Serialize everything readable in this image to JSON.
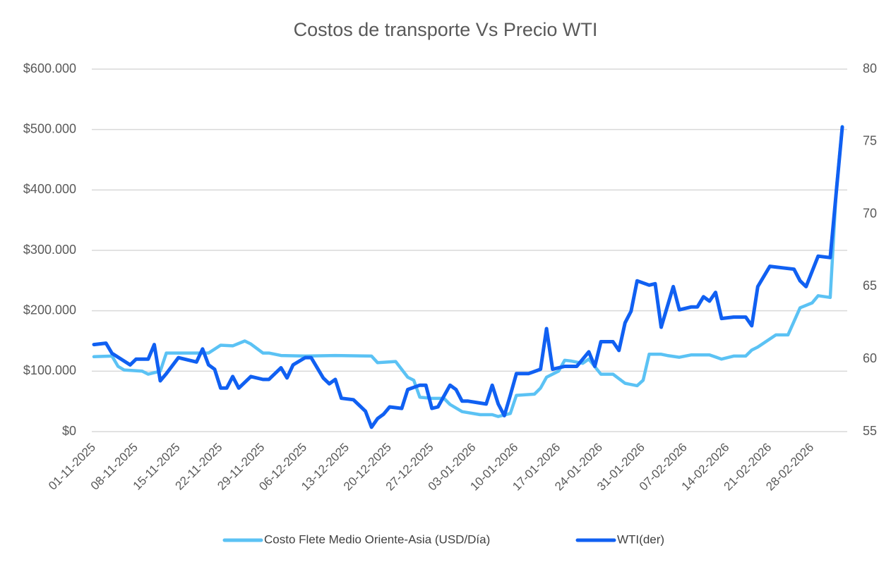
{
  "chart_data": {
    "type": "line",
    "title": "Costos de transporte Vs Precio WTI",
    "xlim": [
      "01-11-2025",
      "05-03-2026"
    ],
    "xticks": [
      "01-11-2025",
      "08-11-2025",
      "15-11-2025",
      "22-11-2025",
      "29-11-2025",
      "06-12-2025",
      "13-12-2025",
      "20-12-2025",
      "27-12-2025",
      "03-01-2026",
      "10-01-2026",
      "17-01-2026",
      "24-01-2026",
      "31-01-2026",
      "07-02-2026",
      "14-02-2026",
      "21-02-2026",
      "28-02-2026"
    ],
    "ylim": [
      0,
      600000
    ],
    "yticks": [
      {
        "value": 0,
        "label": "$0"
      },
      {
        "value": 100000,
        "label": "$100.000"
      },
      {
        "value": 200000,
        "label": "$200.000"
      },
      {
        "value": 300000,
        "label": "$300.000"
      },
      {
        "value": 400000,
        "label": "$400.000"
      },
      {
        "value": 500000,
        "label": "$500.000"
      },
      {
        "value": 600000,
        "label": "$600.000"
      }
    ],
    "y2lim": [
      55,
      80
    ],
    "y2ticks": [
      55,
      60,
      65,
      70,
      75,
      80
    ],
    "grid": true,
    "legend": "bottom",
    "series": [
      {
        "name": "Costo Flete Medio Oriente-Asia (USD/Día)",
        "color": "#5bc2f4",
        "x": [
          "01-11-2025",
          "04-11-2025",
          "05-11-2025",
          "06-11-2025",
          "09-11-2025",
          "10-11-2025",
          "12-11-2025",
          "13-11-2025",
          "16-11-2025",
          "20-11-2025",
          "22-11-2025",
          "24-11-2025",
          "26-11-2025",
          "27-11-2025",
          "29-11-2025",
          "30-11-2025",
          "02-12-2025",
          "06-12-2025",
          "11-12-2025",
          "17-12-2025",
          "18-12-2025",
          "21-12-2025",
          "23-12-2025",
          "24-12-2025",
          "25-12-2025",
          "27-12-2025",
          "29-12-2025",
          "30-12-2025",
          "01-01-2026",
          "04-01-2026",
          "06-01-2026",
          "07-01-2026",
          "09-01-2026",
          "10-01-2026",
          "13-01-2026",
          "14-01-2026",
          "15-01-2026",
          "17-01-2026",
          "18-01-2026",
          "19-01-2026",
          "21-01-2026",
          "22-01-2026",
          "24-01-2026",
          "26-01-2026",
          "28-01-2026",
          "30-01-2026",
          "31-01-2026",
          "01-02-2026",
          "03-02-2026",
          "04-02-2026",
          "06-02-2026",
          "08-02-2026",
          "11-02-2026",
          "13-02-2026",
          "15-02-2026",
          "17-02-2026",
          "18-02-2026",
          "19-02-2026",
          "22-02-2026",
          "24-02-2026",
          "26-02-2026",
          "28-02-2026",
          "01-03-2026",
          "03-03-2026",
          "04-03-2026",
          "05-03-2026"
        ],
        "values": [
          124000,
          125000,
          108000,
          102000,
          100000,
          95000,
          100000,
          130000,
          130000,
          130000,
          143000,
          142000,
          150000,
          145000,
          130000,
          130000,
          126000,
          125000,
          126000,
          125000,
          114000,
          116000,
          90000,
          85000,
          57000,
          55000,
          55000,
          45000,
          33000,
          28000,
          28000,
          25000,
          30000,
          60000,
          62000,
          72000,
          90000,
          100000,
          118000,
          117000,
          113000,
          120000,
          95000,
          95000,
          80000,
          76000,
          85000,
          128000,
          128000,
          126000,
          123000,
          127000,
          127000,
          120000,
          125000,
          125000,
          135000,
          140000,
          160000,
          160000,
          205000,
          213000,
          225000,
          222000,
          400000,
          505000
        ]
      },
      {
        "name": "WTI(der)",
        "color": "#1060f2",
        "axis": "y2",
        "x": [
          "01-11-2025",
          "03-11-2025",
          "04-11-2025",
          "07-11-2025",
          "08-11-2025",
          "10-11-2025",
          "11-11-2025",
          "12-11-2025",
          "13-11-2025",
          "15-11-2025",
          "16-11-2025",
          "18-11-2025",
          "19-11-2025",
          "20-11-2025",
          "21-11-2025",
          "22-11-2025",
          "23-11-2025",
          "24-11-2025",
          "25-11-2025",
          "27-11-2025",
          "29-11-2025",
          "30-11-2025",
          "02-12-2025",
          "03-12-2025",
          "04-12-2025",
          "06-12-2025",
          "07-12-2025",
          "09-12-2025",
          "10-12-2025",
          "11-12-2025",
          "12-12-2025",
          "14-12-2025",
          "16-12-2025",
          "17-12-2025",
          "18-12-2025",
          "19-12-2025",
          "20-12-2025",
          "22-12-2025",
          "23-12-2025",
          "25-12-2025",
          "26-12-2025",
          "27-12-2025",
          "28-12-2025",
          "30-12-2025",
          "31-12-2025",
          "01-01-2026",
          "02-01-2026",
          "05-01-2026",
          "06-01-2026",
          "07-01-2026",
          "08-01-2026",
          "09-01-2026",
          "10-01-2026",
          "12-01-2026",
          "14-01-2026",
          "15-01-2026",
          "16-01-2026",
          "18-01-2026",
          "20-01-2026",
          "22-01-2026",
          "23-01-2026",
          "24-01-2026",
          "26-01-2026",
          "27-01-2026",
          "28-01-2026",
          "29-01-2026",
          "30-01-2026",
          "01-02-2026",
          "02-02-2026",
          "03-02-2026",
          "05-02-2026",
          "06-02-2026",
          "08-02-2026",
          "09-02-2026",
          "10-02-2026",
          "11-02-2026",
          "12-02-2026",
          "13-02-2026",
          "15-02-2026",
          "17-02-2026",
          "18-02-2026",
          "19-02-2026",
          "21-02-2026",
          "23-02-2026",
          "25-02-2026",
          "26-02-2026",
          "27-02-2026",
          "01-03-2026",
          "03-03-2026",
          "05-03-2026"
        ],
        "values": [
          61.0,
          61.1,
          60.4,
          59.6,
          60.0,
          60.0,
          61.0,
          58.5,
          59.0,
          60.1,
          60.0,
          59.8,
          60.7,
          59.6,
          59.3,
          58.0,
          58.0,
          58.8,
          58.0,
          58.8,
          58.6,
          58.6,
          59.4,
          58.7,
          59.6,
          60.1,
          60.1,
          58.7,
          58.3,
          58.6,
          57.3,
          57.2,
          56.4,
          55.3,
          55.9,
          56.2,
          56.7,
          56.6,
          57.9,
          58.2,
          58.2,
          56.6,
          56.7,
          58.2,
          57.9,
          57.1,
          57.1,
          56.9,
          58.2,
          56.9,
          56.1,
          57.5,
          59.0,
          59.0,
          59.3,
          62.1,
          59.3,
          59.5,
          59.5,
          60.5,
          59.5,
          61.2,
          61.2,
          60.6,
          62.5,
          63.3,
          65.4,
          65.1,
          65.2,
          62.2,
          65.0,
          63.4,
          63.6,
          63.6,
          64.3,
          64.0,
          64.6,
          62.8,
          62.9,
          62.9,
          62.3,
          65.0,
          66.4,
          66.3,
          66.2,
          65.4,
          65.0,
          67.1,
          67.0,
          76.0
        ]
      }
    ]
  }
}
